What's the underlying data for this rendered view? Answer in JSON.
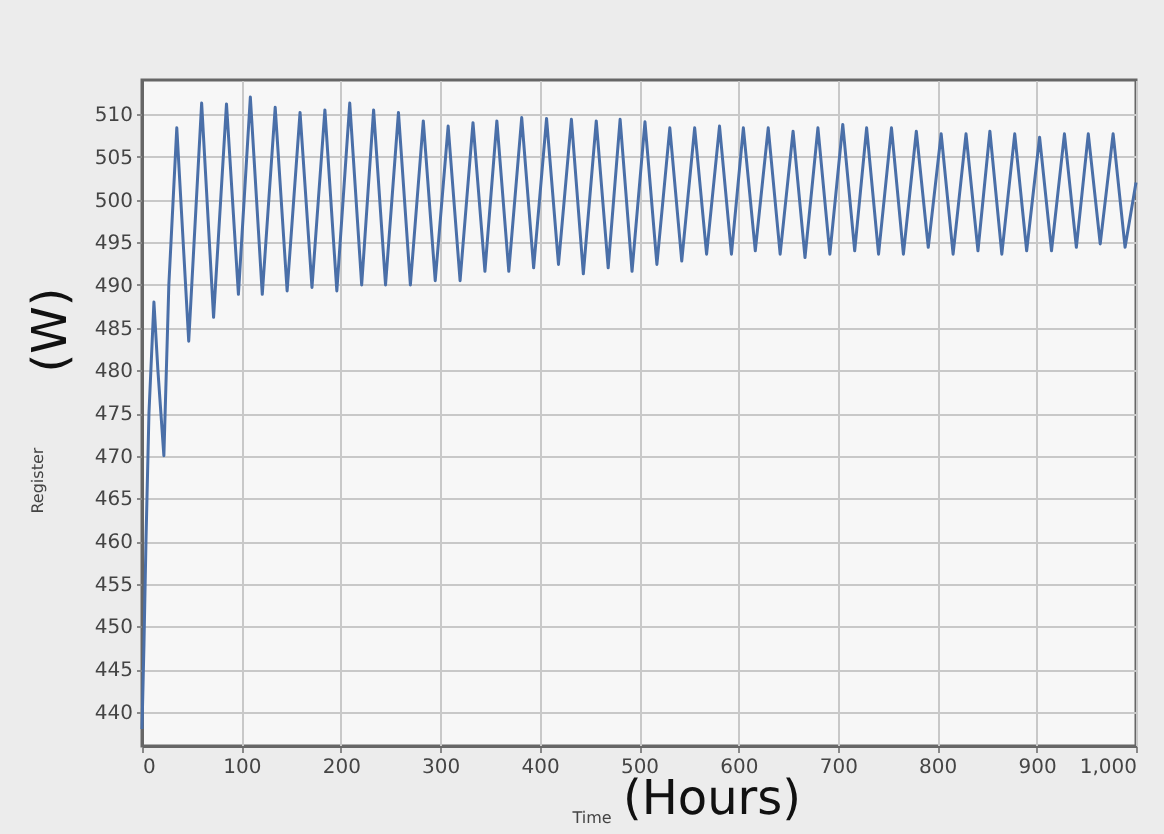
{
  "chart_data": {
    "type": "line",
    "xlabel": "Time",
    "ylabel": "Register",
    "annotations": [
      "(W)",
      "(Hours)"
    ],
    "x": [
      0,
      2,
      4,
      7,
      12,
      16,
      22,
      27,
      35,
      47,
      60,
      72,
      85,
      97,
      109,
      121,
      134,
      146,
      159,
      171,
      184,
      196,
      209,
      221,
      233,
      245,
      258,
      270,
      283,
      295,
      308,
      320,
      333,
      345,
      357,
      369,
      382,
      394,
      407,
      419,
      432,
      444,
      457,
      469,
      481,
      493,
      506,
      518,
      531,
      543,
      556,
      568,
      581,
      593,
      605,
      617,
      630,
      642,
      655,
      667,
      680,
      692,
      705,
      717,
      729,
      741,
      754,
      766,
      779,
      791,
      804,
      816,
      829,
      841,
      853,
      865,
      878,
      890,
      903,
      915,
      928,
      940,
      952,
      964,
      977,
      989,
      1000
    ],
    "series": [
      {
        "color": "#4a6fa8",
        "values": [
          438,
          448,
          460,
          475,
          488,
          480,
          470,
          490,
          508.4,
          483.4,
          511.3,
          486.2,
          511.2,
          488.9,
          512,
          488.9,
          510.8,
          489.3,
          510.2,
          489.7,
          510.5,
          489.3,
          511.3,
          490,
          510.5,
          490,
          510.2,
          490,
          509.2,
          490.5,
          508.6,
          490.5,
          509,
          491.6,
          509.2,
          491.6,
          509.6,
          492,
          509.5,
          492.4,
          509.4,
          491.3,
          509.2,
          492,
          509.4,
          491.6,
          509.1,
          492.4,
          508.4,
          492.8,
          508.4,
          493.6,
          508.6,
          493.6,
          508.4,
          494,
          508.4,
          493.6,
          508,
          493.2,
          508.4,
          493.6,
          508.8,
          494,
          508.4,
          493.6,
          508.4,
          493.6,
          508,
          494.4,
          507.7,
          493.6,
          507.7,
          494,
          508,
          493.6,
          507.7,
          494,
          507.3,
          494,
          507.7,
          494.4,
          507.7,
          494.8,
          507.7,
          494.4,
          502
        ]
      }
    ],
    "xlim": [
      0,
      1000
    ],
    "ylim": [
      436,
      514
    ],
    "xticks": [
      0,
      100,
      200,
      300,
      400,
      500,
      600,
      700,
      800,
      900,
      {
        "value": 1000,
        "label": "1,000"
      }
    ],
    "yticks": [
      440,
      445,
      450,
      455,
      460,
      465,
      470,
      475,
      480,
      485,
      490,
      495,
      500,
      505,
      510
    ],
    "grid": true,
    "marker": "none",
    "line_style": "solid"
  }
}
